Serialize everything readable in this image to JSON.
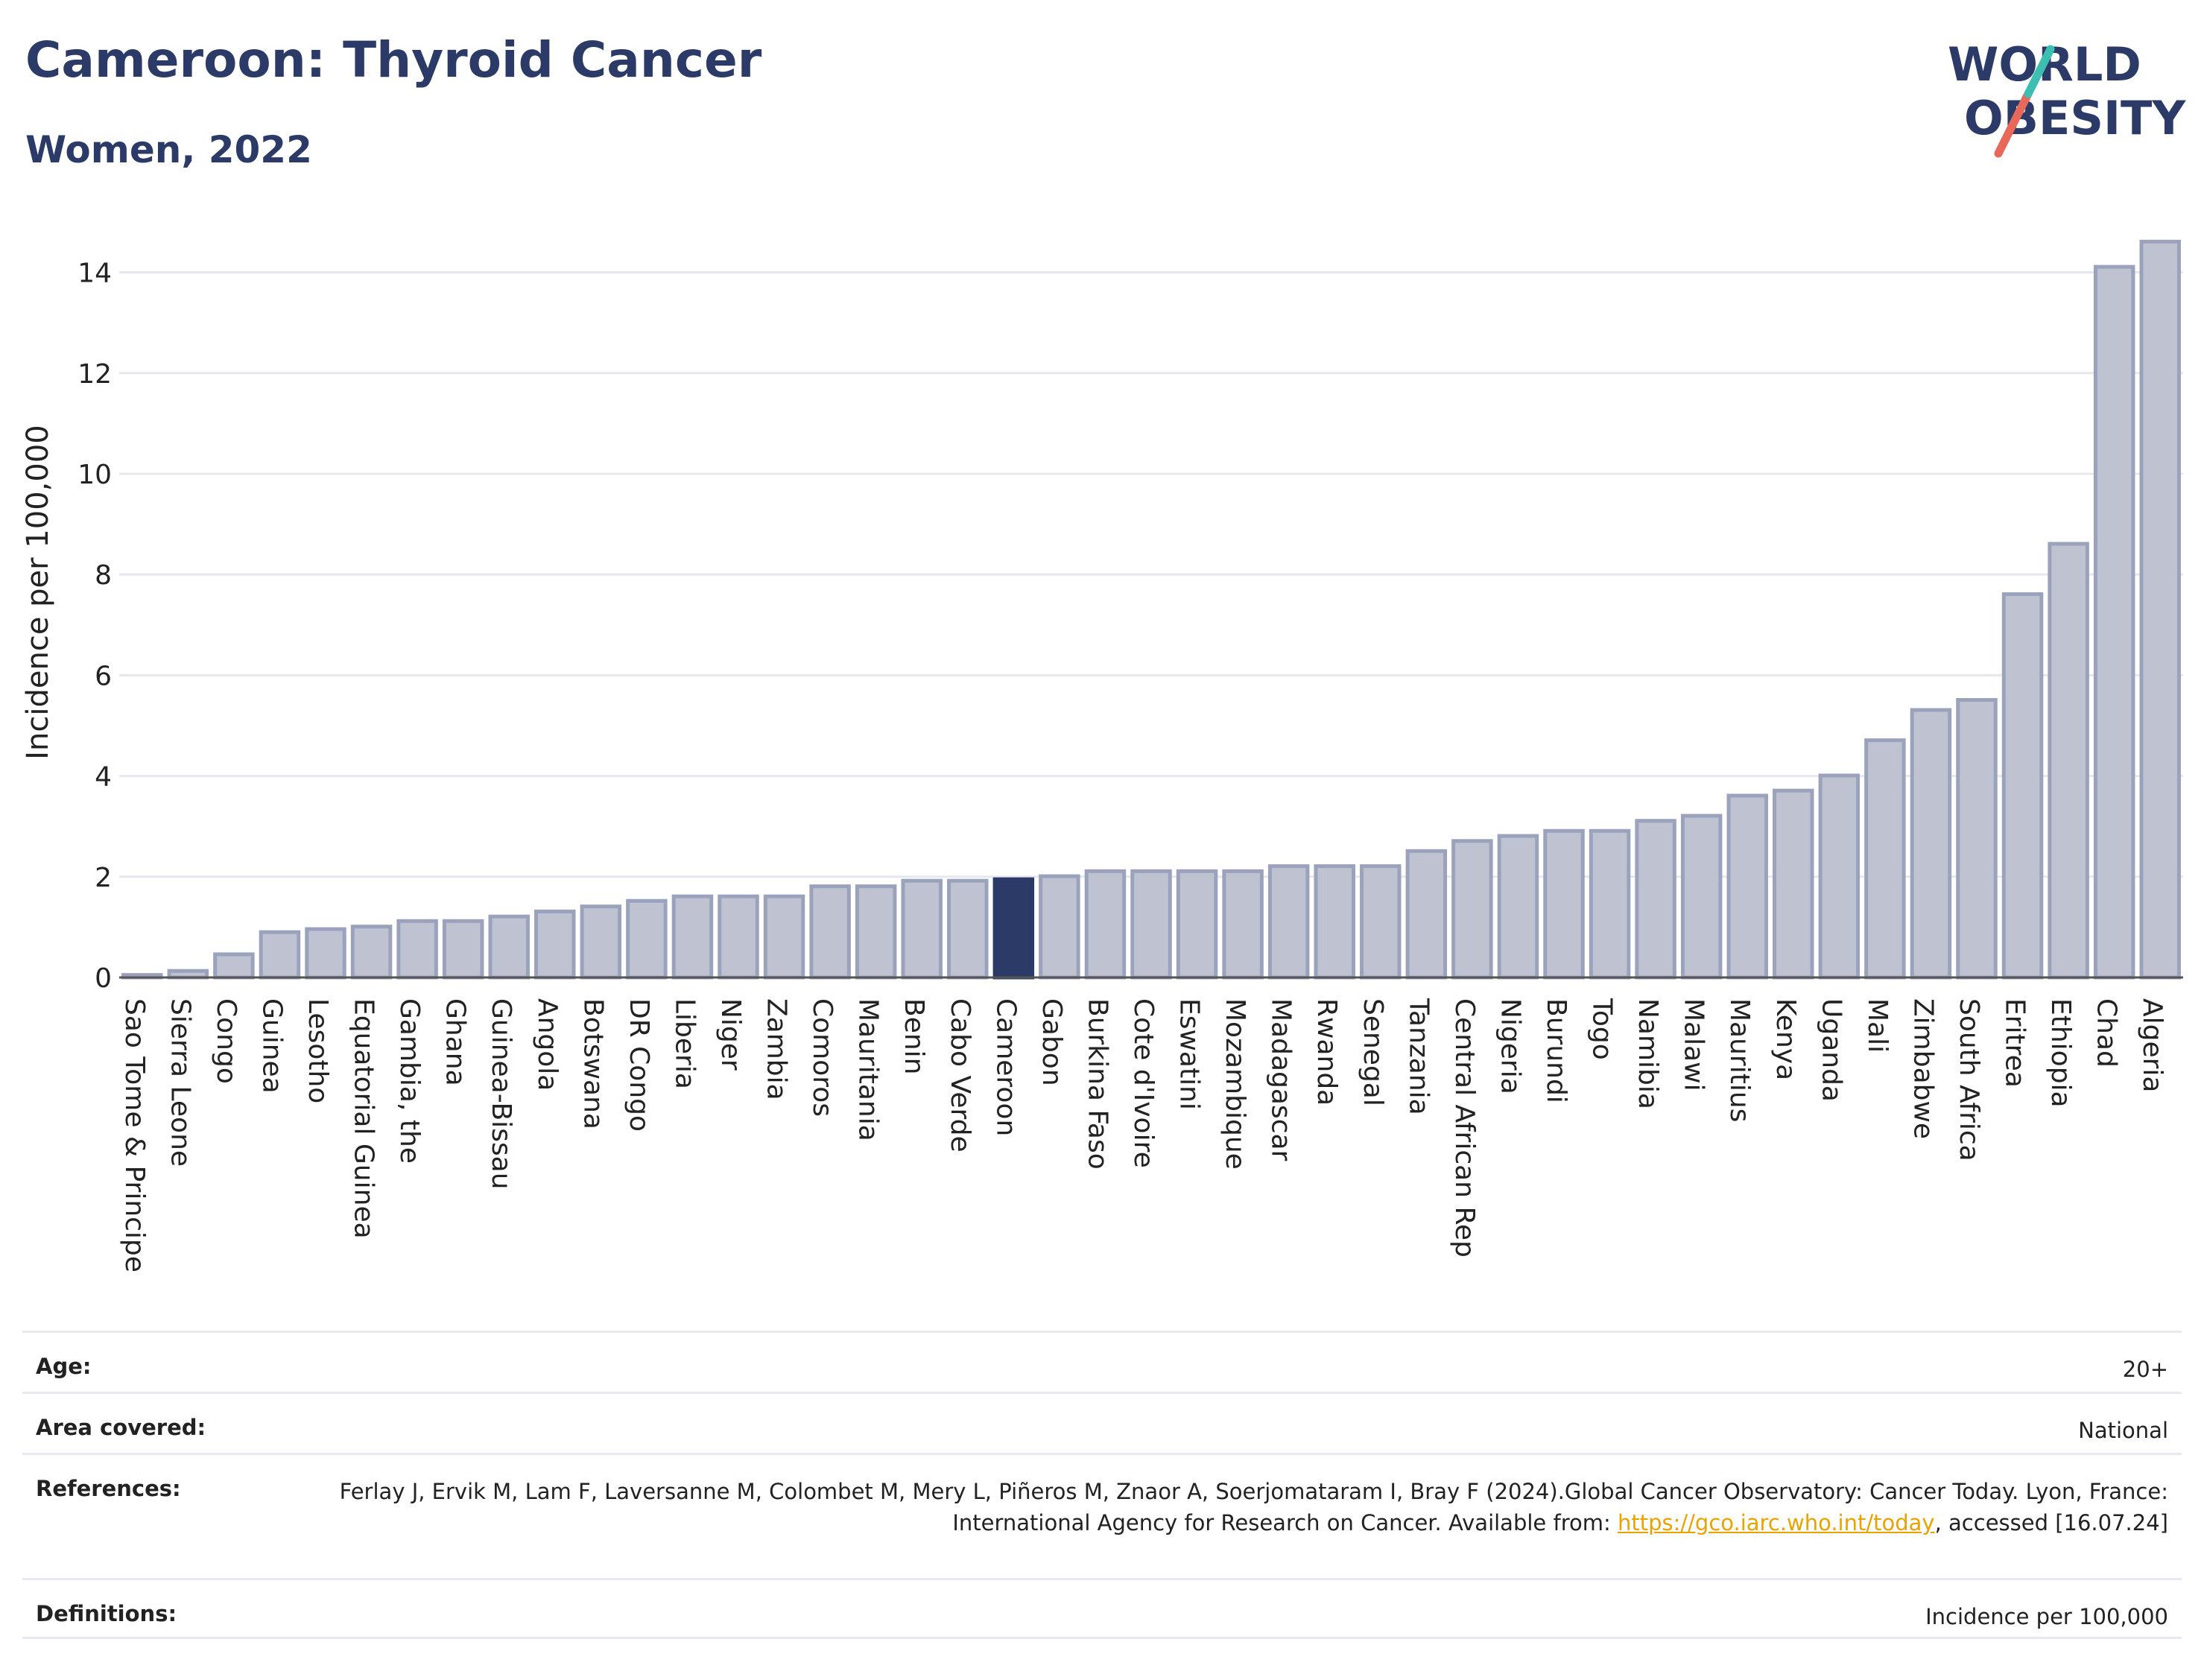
{
  "header": {
    "title": "Cameroon: Thyroid Cancer",
    "subtitle": "Women, 2022"
  },
  "logo": {
    "line1": "WORLD",
    "line2": "OBESITY"
  },
  "colors": {
    "bar": "#bfc3d1",
    "bar_outline": "#9ba2bb",
    "highlight": "#2b3a67",
    "title": "#2b3a67",
    "logo_teal": "#3cbfb1",
    "logo_coral": "#e8685a"
  },
  "chart_data": {
    "type": "bar",
    "title": "Cameroon: Thyroid Cancer",
    "subtitle": "Women, 2022",
    "ylabel": "Incidence per 100,000",
    "xlabel": "",
    "ylim": [
      0,
      14.6
    ],
    "yticks": [
      0,
      2,
      4,
      6,
      8,
      10,
      12,
      14
    ],
    "grid": true,
    "highlight_category": "Cameroon",
    "categories": [
      "Sao Tome & Principe",
      "Sierra Leone",
      "Congo",
      "Guinea",
      "Lesotho",
      "Equatorial Guinea",
      "Gambia, the",
      "Ghana",
      "Guinea-Bissau",
      "Angola",
      "Botswana",
      "DR Congo",
      "Liberia",
      "Niger",
      "Zambia",
      "Comoros",
      "Mauritania",
      "Benin",
      "Cabo Verde",
      "Cameroon",
      "Gabon",
      "Burkina Faso",
      "Cote d'Ivoire",
      "Eswatini",
      "Mozambique",
      "Madagascar",
      "Rwanda",
      "Senegal",
      "Tanzania",
      "Central African Rep",
      "Nigeria",
      "Burundi",
      "Togo",
      "Namibia",
      "Malawi",
      "Mauritius",
      "Kenya",
      "Uganda",
      "Mali",
      "Zimbabwe",
      "South Africa",
      "Eritrea",
      "Ethiopia",
      "Chad",
      "Algeria"
    ],
    "values": [
      0.05,
      0.13,
      0.46,
      0.9,
      0.96,
      1.01,
      1.12,
      1.12,
      1.21,
      1.31,
      1.41,
      1.52,
      1.61,
      1.61,
      1.61,
      1.81,
      1.81,
      1.92,
      1.92,
      1.95,
      2.01,
      2.11,
      2.11,
      2.11,
      2.11,
      2.21,
      2.21,
      2.21,
      2.51,
      2.71,
      2.81,
      2.91,
      2.91,
      3.11,
      3.21,
      3.61,
      3.71,
      4.01,
      4.71,
      5.31,
      5.51,
      7.61,
      8.61,
      14.11,
      14.61
    ]
  },
  "meta": {
    "age_label": "Age:",
    "age_value": "20+",
    "area_label": "Area covered:",
    "area_value": "National",
    "references_label": "References:",
    "references_text_1": "Ferlay J, Ervik M, Lam F, Laversanne M, Colombet M, Mery L, Piñeros M, Znaor A, Soerjomataram I, Bray F (2024).Global Cancer Observatory: Cancer Today. Lyon, France: International Agency for Research on Cancer. Available from: ",
    "references_link": "https://gco.iarc.who.int/today",
    "references_text_2": ", accessed [16.07.24]",
    "definitions_label": "Definitions:",
    "definitions_value": "Incidence per 100,000"
  }
}
